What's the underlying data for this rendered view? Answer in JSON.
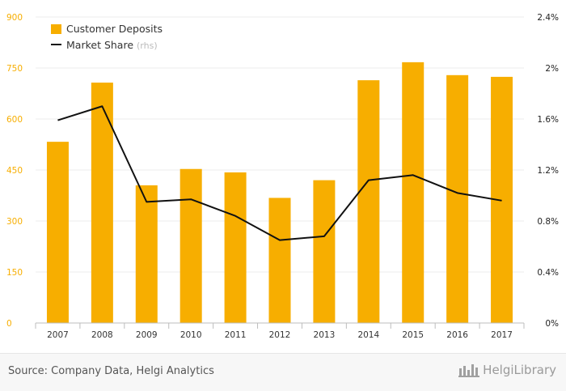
{
  "chart_data": {
    "type": "bar",
    "categories": [
      "2007",
      "2008",
      "2009",
      "2010",
      "2011",
      "2012",
      "2013",
      "2014",
      "2015",
      "2016",
      "2017"
    ],
    "series": [
      {
        "name": "Customer Deposits",
        "type": "bar",
        "axis": "left",
        "values": [
          533,
          707,
          405,
          453,
          443,
          368,
          420,
          714,
          767,
          729,
          724
        ]
      },
      {
        "name": "Market Share",
        "legend_suffix": "(rhs)",
        "type": "line",
        "axis": "right",
        "unit": "%",
        "values": [
          1.59,
          1.7,
          0.95,
          0.97,
          0.84,
          0.65,
          0.68,
          1.12,
          1.16,
          1.02,
          0.96
        ]
      }
    ],
    "left_axis": {
      "ylim": [
        0,
        900
      ],
      "ticks": [
        0,
        150,
        300,
        450,
        600,
        750,
        900
      ]
    },
    "right_axis": {
      "ylim": [
        0,
        2.4
      ],
      "ticks": [
        "0%",
        "0.4%",
        "0.8%",
        "1.2%",
        "1.6%",
        "2%",
        "2.4%"
      ]
    },
    "grid": "horizontal",
    "legend_position": "top-left",
    "colors": {
      "bar": "#f7ae00",
      "line": "#111111",
      "left_ticks": "#f7ae00",
      "right_ticks": "#222222",
      "grid": "#ececec"
    }
  },
  "footer": {
    "source": "Source: Company Data, Helgi Analytics",
    "brand": "HelgiLibrary"
  }
}
